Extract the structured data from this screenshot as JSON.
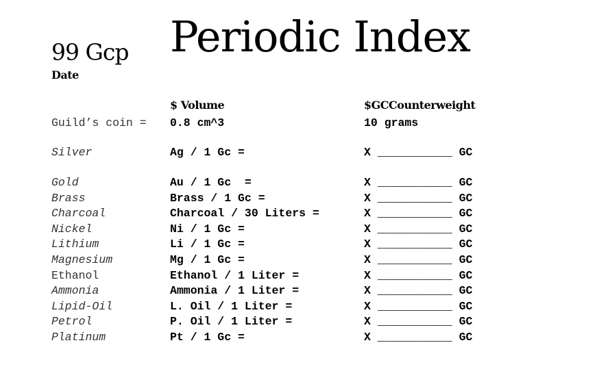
{
  "header": {
    "title": "Periodic Index",
    "amount": "99 Gcp",
    "date_label": "Date"
  },
  "columns": {
    "volume": "$ Volume",
    "counterweight": "$GCCounterweight"
  },
  "reference": {
    "label": "Guild’s coin =",
    "volume": "0.8 cm^3",
    "weight": "10 grams"
  },
  "rows": [
    [
      "Silver",
      "Ag / 1 Gc =",
      "X ___________ GC"
    ],
    [
      "Gold",
      "Au / 1 Gc  =",
      "X ___________ GC"
    ],
    [
      "Brass",
      "Brass / 1 Gc =",
      "X ___________ GC"
    ],
    [
      "Charcoal",
      "Charcoal / 30 Liters =",
      "X ___________ GC"
    ],
    [
      "Nickel",
      "Ni / 1 Gc =",
      "X ___________ GC"
    ],
    [
      "Lithium",
      "Li / 1 Gc =",
      "X ___________ GC"
    ],
    [
      "Magnesium",
      "Mg / 1 Gc =",
      "X ___________ GC"
    ],
    [
      "Ethanol",
      "Ethanol / 1 Liter =",
      "X ___________ GC"
    ],
    [
      "Ammonia",
      "Ammonia / 1 Liter =",
      "X ___________ GC"
    ],
    [
      "Lipid-Oil",
      "L. Oil / 1 Liter =",
      "X ___________ GC"
    ],
    [
      "Petrol",
      "P. Oil / 1 Liter =",
      "X ___________ GC"
    ],
    [
      "Platinum",
      "Pt / 1 Gc =",
      "X ___________ GC"
    ]
  ]
}
